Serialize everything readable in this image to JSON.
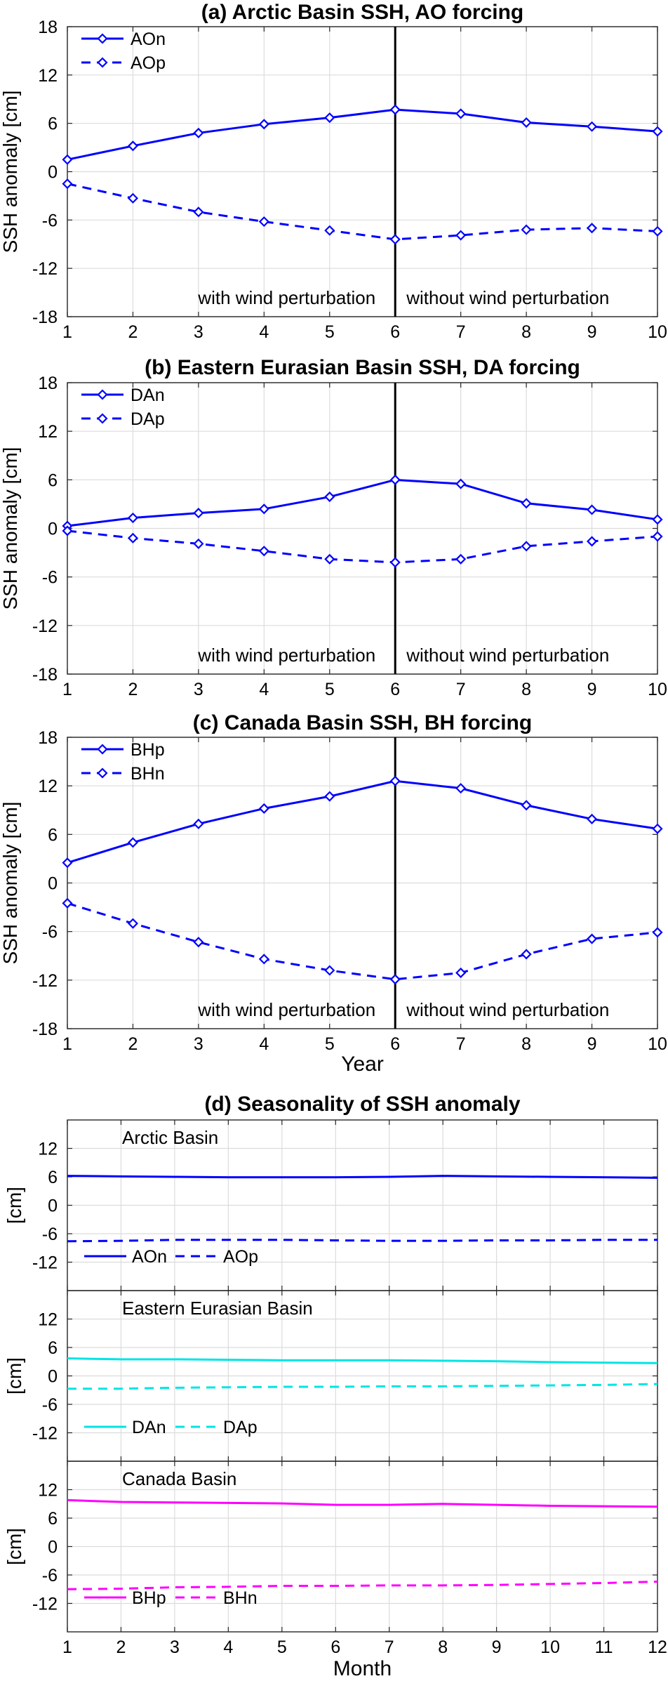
{
  "chart_data": [
    {
      "type": "line",
      "title": "(a) Arctic Basin SSH, AO forcing",
      "ylabel": "SSH anomaly [cm]",
      "xlabel": "",
      "x": [
        1,
        2,
        3,
        4,
        5,
        6,
        7,
        8,
        9,
        10
      ],
      "xticks": [
        "1",
        "2",
        "3",
        "4",
        "5",
        "6",
        "7",
        "8",
        "9",
        "10"
      ],
      "xlim": [
        1,
        10
      ],
      "ylim": [
        -18,
        18
      ],
      "yticks": [
        "18",
        "12",
        "6",
        "0",
        "-6",
        "-12",
        "-18"
      ],
      "grid": true,
      "vline": 6,
      "left_note": "with wind perturbation",
      "right_note": "without wind perturbation",
      "legend_position": "top-left",
      "series": [
        {
          "name": "AOn",
          "style": "solid",
          "color": "#0000ff",
          "values": [
            1.5,
            3.2,
            4.8,
            5.9,
            6.7,
            7.7,
            7.2,
            6.1,
            5.6,
            5.0
          ]
        },
        {
          "name": "AOp",
          "style": "dashed",
          "color": "#0000ff",
          "values": [
            -1.5,
            -3.3,
            -5.0,
            -6.2,
            -7.3,
            -8.4,
            -7.9,
            -7.2,
            -7.0,
            -7.4
          ]
        }
      ]
    },
    {
      "type": "line",
      "title": "(b) Eastern Eurasian Basin SSH, DA forcing",
      "ylabel": "SSH anomaly [cm]",
      "xlabel": "",
      "x": [
        1,
        2,
        3,
        4,
        5,
        6,
        7,
        8,
        9,
        10
      ],
      "xticks": [
        "1",
        "2",
        "3",
        "4",
        "5",
        "6",
        "7",
        "8",
        "9",
        "10"
      ],
      "xlim": [
        1,
        10
      ],
      "ylim": [
        -18,
        18
      ],
      "yticks": [
        "18",
        "12",
        "6",
        "0",
        "-6",
        "-12",
        "-18"
      ],
      "grid": true,
      "vline": 6,
      "left_note": "with wind perturbation",
      "right_note": "without wind perturbation",
      "legend_position": "top-left",
      "series": [
        {
          "name": "DAn",
          "style": "solid",
          "color": "#0000ff",
          "values": [
            0.3,
            1.3,
            1.9,
            2.4,
            3.9,
            6.0,
            5.5,
            3.1,
            2.3,
            1.1
          ]
        },
        {
          "name": "DAp",
          "style": "dashed",
          "color": "#0000ff",
          "values": [
            -0.3,
            -1.2,
            -1.9,
            -2.8,
            -3.8,
            -4.2,
            -3.8,
            -2.2,
            -1.6,
            -1.0
          ]
        }
      ]
    },
    {
      "type": "line",
      "title": "(c) Canada Basin SSH, BH forcing",
      "ylabel": "SSH anomaly [cm]",
      "xlabel": "Year",
      "x": [
        1,
        2,
        3,
        4,
        5,
        6,
        7,
        8,
        9,
        10
      ],
      "xticks": [
        "1",
        "2",
        "3",
        "4",
        "5",
        "6",
        "7",
        "8",
        "9",
        "10"
      ],
      "xlim": [
        1,
        10
      ],
      "ylim": [
        -18,
        18
      ],
      "yticks": [
        "18",
        "12",
        "6",
        "0",
        "-6",
        "-12",
        "-18"
      ],
      "grid": true,
      "vline": 6,
      "left_note": "with wind perturbation",
      "right_note": "without wind perturbation",
      "legend_position": "top-left",
      "series": [
        {
          "name": "BHp",
          "style": "solid",
          "color": "#0000ff",
          "values": [
            2.5,
            5.0,
            7.3,
            9.2,
            10.7,
            12.6,
            11.7,
            9.6,
            7.9,
            6.7
          ]
        },
        {
          "name": "BHn",
          "style": "dashed",
          "color": "#0000ff",
          "values": [
            -2.5,
            -5.0,
            -7.3,
            -9.4,
            -10.8,
            -11.9,
            -11.1,
            -8.8,
            -6.9,
            -6.1
          ]
        }
      ]
    }
  ],
  "seasonality": {
    "title": "(d) Seasonality of SSH anomaly",
    "xlabel": "Month",
    "ylabel": "[cm]",
    "x": [
      1,
      2,
      3,
      4,
      5,
      6,
      7,
      8,
      9,
      10,
      11,
      12
    ],
    "xticks": [
      "1",
      "2",
      "3",
      "4",
      "5",
      "6",
      "7",
      "8",
      "9",
      "10",
      "11",
      "12"
    ],
    "xlim": [
      1,
      12
    ],
    "ylim": [
      -18,
      18
    ],
    "yticks": [
      "12",
      "6",
      "0",
      "-6",
      "-12"
    ],
    "grid": true,
    "panels": [
      {
        "label": "Arctic Basin",
        "color": "#0000ff",
        "series": [
          {
            "name": "AOn",
            "style": "solid",
            "values": [
              6.2,
              6.1,
              6.0,
              5.9,
              5.9,
              5.9,
              6.0,
              6.2,
              6.1,
              6.0,
              5.9,
              5.8
            ]
          },
          {
            "name": "AOp",
            "style": "dashed",
            "values": [
              -7.6,
              -7.5,
              -7.3,
              -7.3,
              -7.3,
              -7.4,
              -7.5,
              -7.5,
              -7.4,
              -7.4,
              -7.3,
              -7.3
            ]
          }
        ]
      },
      {
        "label": "Eastern Eurasian Basin",
        "color": "#00e5e5",
        "series": [
          {
            "name": "DAn",
            "style": "solid",
            "values": [
              3.7,
              3.5,
              3.5,
              3.4,
              3.3,
              3.3,
              3.3,
              3.2,
              3.1,
              2.9,
              2.8,
              2.7
            ]
          },
          {
            "name": "DAp",
            "style": "dashed",
            "values": [
              -2.7,
              -2.7,
              -2.5,
              -2.4,
              -2.3,
              -2.3,
              -2.2,
              -2.2,
              -2.1,
              -2.0,
              -1.9,
              -1.7
            ]
          }
        ]
      },
      {
        "label": "Canada Basin",
        "color": "#ff00ff",
        "series": [
          {
            "name": "BHp",
            "style": "solid",
            "values": [
              9.8,
              9.4,
              9.3,
              9.2,
              9.1,
              8.8,
              8.8,
              9.0,
              8.8,
              8.6,
              8.5,
              8.4
            ]
          },
          {
            "name": "BHn",
            "style": "dashed",
            "values": [
              -9.0,
              -8.9,
              -8.6,
              -8.5,
              -8.3,
              -8.3,
              -8.2,
              -8.2,
              -8.1,
              -7.9,
              -7.7,
              -7.4
            ]
          }
        ]
      }
    ]
  }
}
